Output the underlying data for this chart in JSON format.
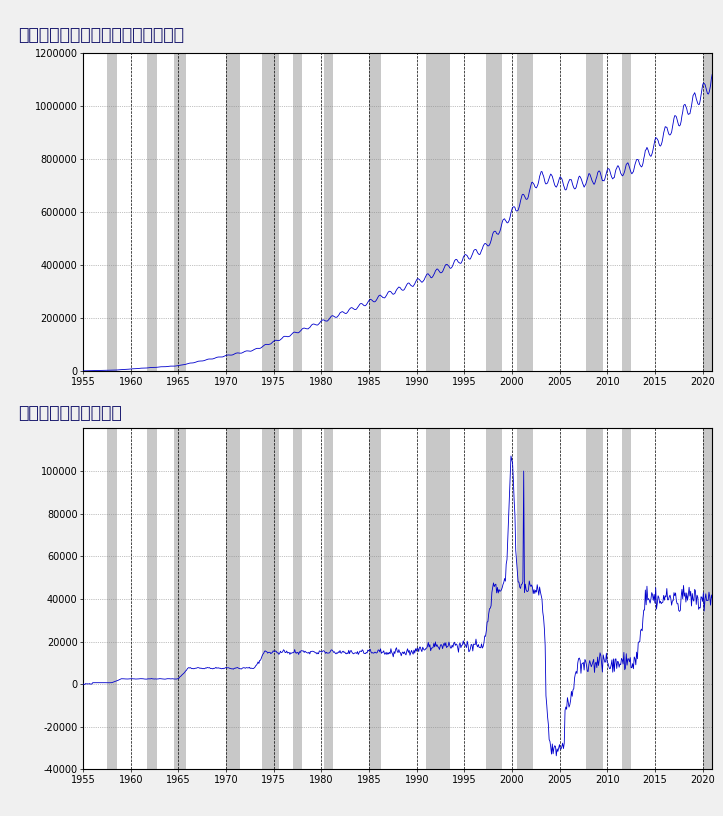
{
  "title1": "１．日本銀行の通貨発行残高の推移",
  "title2": "２．対前年同期比増減",
  "title_color": "#1a1a6e",
  "background_color": "#f0f0f0",
  "plot_bg_color": "#ffffff",
  "line_color": "#0000CC",
  "shade_color": "#C8C8C8",
  "grid_color": "#000000",
  "axis_color": "#000000",
  "xlim": [
    1955,
    2021
  ],
  "xticks": [
    1955,
    1960,
    1965,
    1970,
    1975,
    1980,
    1985,
    1990,
    1995,
    2000,
    2005,
    2010,
    2015,
    2020
  ],
  "ylim1": [
    0,
    1200000
  ],
  "yticks1": [
    0,
    200000,
    400000,
    600000,
    800000,
    1000000,
    1200000
  ],
  "ylim2": [
    -40000,
    120000
  ],
  "yticks2": [
    -40000,
    -20000,
    0,
    20000,
    40000,
    60000,
    80000,
    100000
  ],
  "recession_bands": [
    [
      1957.5,
      1958.6
    ],
    [
      1961.75,
      1962.75
    ],
    [
      1964.5,
      1965.75
    ],
    [
      1970.0,
      1971.5
    ],
    [
      1973.75,
      1975.5
    ],
    [
      1977.0,
      1978.0
    ],
    [
      1980.25,
      1981.25
    ],
    [
      1985.0,
      1986.25
    ],
    [
      1991.0,
      1993.5
    ],
    [
      1997.25,
      1999.0
    ],
    [
      2000.5,
      2002.25
    ],
    [
      2007.75,
      2009.5
    ],
    [
      2011.5,
      2012.5
    ],
    [
      2020.0,
      2021.0
    ]
  ]
}
